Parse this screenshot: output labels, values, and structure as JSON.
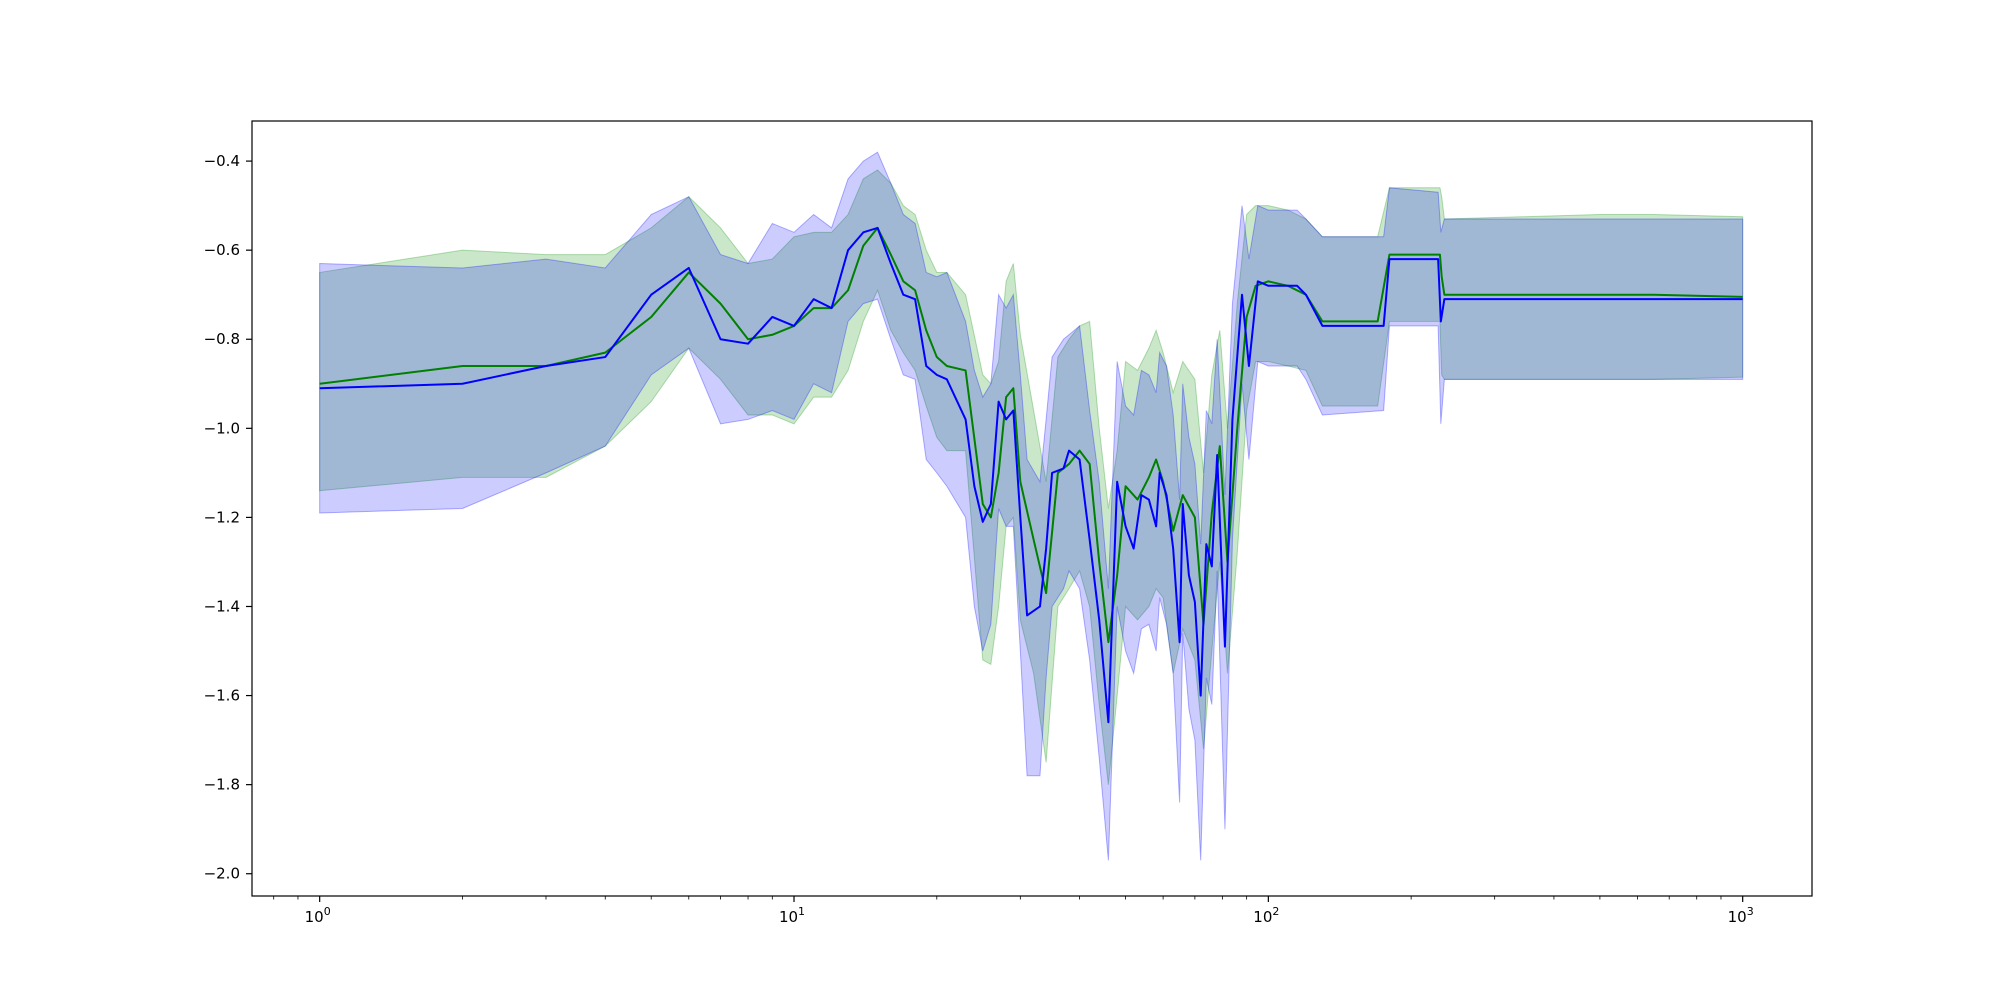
{
  "chart_data": {
    "type": "line",
    "title": "",
    "xlabel": "",
    "ylabel": "",
    "x_scale": "log",
    "xlim": [
      0.72,
      1400
    ],
    "ylim": [
      -2.05,
      -0.31
    ],
    "grid": false,
    "legend": "none",
    "x_ticks": [
      {
        "value": 1,
        "base": "10",
        "exp": "0"
      },
      {
        "value": 10,
        "base": "10",
        "exp": "1"
      },
      {
        "value": 100,
        "base": "10",
        "exp": "2"
      },
      {
        "value": 1000,
        "base": "10",
        "exp": "3"
      }
    ],
    "y_ticks": [
      {
        "value": -0.4,
        "label": "−0.4"
      },
      {
        "value": -0.6,
        "label": "−0.6"
      },
      {
        "value": -0.8,
        "label": "−0.8"
      },
      {
        "value": -1.0,
        "label": "−1.0"
      },
      {
        "value": -1.2,
        "label": "−1.2"
      },
      {
        "value": -1.4,
        "label": "−1.4"
      },
      {
        "value": -1.6,
        "label": "−1.6"
      },
      {
        "value": -1.8,
        "label": "−1.8"
      },
      {
        "value": -2.0,
        "label": "−2.0"
      }
    ],
    "series": [
      {
        "color": "#008000",
        "band_color": "#2ca02c",
        "band_opacity": 0.25,
        "points": [
          [
            1,
            -0.9,
            -0.65,
            -1.14
          ],
          [
            2,
            -0.86,
            -0.6,
            -1.11
          ],
          [
            3,
            -0.86,
            -0.61,
            -1.11
          ],
          [
            4,
            -0.83,
            -0.61,
            -1.04
          ],
          [
            5,
            -0.75,
            -0.55,
            -0.94
          ],
          [
            6,
            -0.65,
            -0.48,
            -0.82
          ],
          [
            7,
            -0.72,
            -0.55,
            -0.89
          ],
          [
            8,
            -0.8,
            -0.63,
            -0.97
          ],
          [
            9,
            -0.79,
            -0.62,
            -0.97
          ],
          [
            10,
            -0.77,
            -0.57,
            -0.99
          ],
          [
            11,
            -0.73,
            -0.56,
            -0.93
          ],
          [
            12,
            -0.73,
            -0.56,
            -0.93
          ],
          [
            13,
            -0.69,
            -0.52,
            -0.87
          ],
          [
            14,
            -0.59,
            -0.44,
            -0.76
          ],
          [
            15,
            -0.55,
            -0.42,
            -0.69
          ],
          [
            16,
            -0.61,
            -0.45,
            -0.78
          ],
          [
            17,
            -0.67,
            -0.5,
            -0.83
          ],
          [
            18,
            -0.69,
            -0.52,
            -0.87
          ],
          [
            19,
            -0.78,
            -0.6,
            -0.95
          ],
          [
            20,
            -0.84,
            -0.65,
            -1.02
          ],
          [
            21,
            -0.86,
            -0.65,
            -1.05
          ],
          [
            23,
            -0.87,
            -0.7,
            -1.05
          ],
          [
            25,
            -1.17,
            -0.88,
            -1.52
          ],
          [
            26,
            -1.2,
            -0.9,
            -1.53
          ],
          [
            27,
            -1.1,
            -0.85,
            -1.4
          ],
          [
            28,
            -0.93,
            -0.67,
            -1.22
          ],
          [
            29,
            -0.91,
            -0.63,
            -1.2
          ],
          [
            30,
            -1.12,
            -0.79,
            -1.43
          ],
          [
            32,
            -1.25,
            -0.96,
            -1.55
          ],
          [
            34,
            -1.37,
            -1.12,
            -1.75
          ],
          [
            36,
            -1.1,
            -0.84,
            -1.4
          ],
          [
            38,
            -1.08,
            -0.8,
            -1.36
          ],
          [
            40,
            -1.05,
            -0.77,
            -1.32
          ],
          [
            42,
            -1.08,
            -0.76,
            -1.4
          ],
          [
            44,
            -1.3,
            -1.0,
            -1.62
          ],
          [
            46,
            -1.48,
            -1.18,
            -1.8
          ],
          [
            48,
            -1.33,
            -1.05,
            -1.6
          ],
          [
            50,
            -1.13,
            -0.85,
            -1.4
          ],
          [
            53,
            -1.16,
            -0.87,
            -1.43
          ],
          [
            56,
            -1.11,
            -0.82,
            -1.4
          ],
          [
            58,
            -1.07,
            -0.78,
            -1.36
          ],
          [
            60,
            -1.12,
            -0.83,
            -1.38
          ],
          [
            63,
            -1.23,
            -0.92,
            -1.55
          ],
          [
            66,
            -1.15,
            -0.85,
            -1.45
          ],
          [
            70,
            -1.2,
            -0.89,
            -1.52
          ],
          [
            73,
            -1.44,
            -1.1,
            -1.72
          ],
          [
            76,
            -1.19,
            -0.88,
            -1.5
          ],
          [
            79,
            -1.04,
            -0.78,
            -1.3
          ],
          [
            82,
            -1.3,
            -1.0,
            -1.55
          ],
          [
            86,
            -1.0,
            -0.72,
            -1.28
          ],
          [
            90,
            -0.75,
            -0.52,
            -0.96
          ],
          [
            94,
            -0.68,
            -0.5,
            -0.85
          ],
          [
            100,
            -0.67,
            -0.5,
            -0.85
          ],
          [
            110,
            -0.68,
            -0.51,
            -0.86
          ],
          [
            120,
            -0.7,
            -0.53,
            -0.87
          ],
          [
            130,
            -0.76,
            -0.57,
            -0.95
          ],
          [
            170,
            -0.76,
            -0.57,
            -0.95
          ],
          [
            180,
            -0.61,
            -0.46,
            -0.76
          ],
          [
            230,
            -0.61,
            -0.46,
            -0.76
          ],
          [
            232,
            -0.66,
            -0.48,
            -0.88
          ],
          [
            235,
            -0.7,
            -0.53,
            -0.89
          ],
          [
            500,
            -0.7,
            -0.52,
            -0.89
          ],
          [
            650,
            -0.7,
            -0.52,
            -0.89
          ],
          [
            1000,
            -0.705,
            -0.525,
            -0.885
          ]
        ]
      },
      {
        "color": "#0000ff",
        "band_color": "#0000ff",
        "band_opacity": 0.2,
        "points": [
          [
            1,
            -0.91,
            -0.63,
            -1.19
          ],
          [
            2,
            -0.9,
            -0.64,
            -1.18
          ],
          [
            3,
            -0.86,
            -0.62,
            -1.1
          ],
          [
            4,
            -0.84,
            -0.64,
            -1.04
          ],
          [
            5,
            -0.7,
            -0.52,
            -0.88
          ],
          [
            6,
            -0.64,
            -0.48,
            -0.82
          ],
          [
            7,
            -0.8,
            -0.61,
            -0.99
          ],
          [
            8,
            -0.81,
            -0.63,
            -0.98
          ],
          [
            9,
            -0.75,
            -0.54,
            -0.96
          ],
          [
            10,
            -0.77,
            -0.56,
            -0.98
          ],
          [
            11,
            -0.71,
            -0.52,
            -0.9
          ],
          [
            12,
            -0.73,
            -0.55,
            -0.92
          ],
          [
            13,
            -0.6,
            -0.44,
            -0.76
          ],
          [
            14,
            -0.56,
            -0.4,
            -0.72
          ],
          [
            15,
            -0.55,
            -0.38,
            -0.71
          ],
          [
            16,
            -0.63,
            -0.45,
            -0.8
          ],
          [
            17,
            -0.7,
            -0.52,
            -0.88
          ],
          [
            18,
            -0.71,
            -0.54,
            -0.89
          ],
          [
            19,
            -0.86,
            -0.65,
            -1.07
          ],
          [
            20,
            -0.88,
            -0.66,
            -1.1
          ],
          [
            21,
            -0.89,
            -0.65,
            -1.13
          ],
          [
            23,
            -0.98,
            -0.76,
            -1.2
          ],
          [
            24,
            -1.13,
            -0.87,
            -1.4
          ],
          [
            25,
            -1.21,
            -0.93,
            -1.5
          ],
          [
            26,
            -1.17,
            -0.9,
            -1.44
          ],
          [
            27,
            -0.94,
            -0.7,
            -1.18
          ],
          [
            28,
            -0.98,
            -0.73,
            -1.22
          ],
          [
            29,
            -0.96,
            -0.7,
            -1.22
          ],
          [
            30,
            -1.2,
            -0.88,
            -1.5
          ],
          [
            31,
            -1.42,
            -1.07,
            -1.78
          ],
          [
            33,
            -1.4,
            -1.12,
            -1.78
          ],
          [
            34,
            -1.27,
            -0.98,
            -1.56
          ],
          [
            35,
            -1.1,
            -0.84,
            -1.4
          ],
          [
            37,
            -1.09,
            -0.8,
            -1.36
          ],
          [
            38,
            -1.05,
            -0.79,
            -1.32
          ],
          [
            40,
            -1.07,
            -0.77,
            -1.36
          ],
          [
            42,
            -1.25,
            -0.96,
            -1.52
          ],
          [
            44,
            -1.43,
            -1.12,
            -1.74
          ],
          [
            46,
            -1.66,
            -1.36,
            -1.97
          ],
          [
            48,
            -1.12,
            -0.85,
            -1.4
          ],
          [
            50,
            -1.22,
            -0.95,
            -1.5
          ],
          [
            52,
            -1.27,
            -0.97,
            -1.55
          ],
          [
            54,
            -1.15,
            -0.87,
            -1.45
          ],
          [
            56,
            -1.16,
            -0.88,
            -1.44
          ],
          [
            58,
            -1.22,
            -0.92,
            -1.5
          ],
          [
            59,
            -1.1,
            -0.83,
            -1.38
          ],
          [
            61,
            -1.15,
            -0.86,
            -1.44
          ],
          [
            63,
            -1.27,
            -0.97,
            -1.55
          ],
          [
            65,
            -1.48,
            -1.16,
            -1.84
          ],
          [
            66,
            -1.17,
            -0.9,
            -1.46
          ],
          [
            68,
            -1.33,
            -1.02,
            -1.63
          ],
          [
            70,
            -1.39,
            -1.08,
            -1.7
          ],
          [
            72,
            -1.6,
            -1.26,
            -1.97
          ],
          [
            74,
            -1.26,
            -0.96,
            -1.56
          ],
          [
            76,
            -1.31,
            -0.99,
            -1.62
          ],
          [
            78,
            -1.06,
            -0.8,
            -1.32
          ],
          [
            81,
            -1.49,
            -1.15,
            -1.9
          ],
          [
            84,
            -0.98,
            -0.72,
            -1.25
          ],
          [
            88,
            -0.7,
            -0.5,
            -0.9
          ],
          [
            91,
            -0.86,
            -0.62,
            -1.07
          ],
          [
            95,
            -0.67,
            -0.5,
            -0.85
          ],
          [
            100,
            -0.68,
            -0.51,
            -0.86
          ],
          [
            115,
            -0.68,
            -0.51,
            -0.86
          ],
          [
            120,
            -0.7,
            -0.53,
            -0.89
          ],
          [
            130,
            -0.77,
            -0.57,
            -0.97
          ],
          [
            175,
            -0.77,
            -0.57,
            -0.96
          ],
          [
            180,
            -0.62,
            -0.46,
            -0.77
          ],
          [
            228,
            -0.62,
            -0.47,
            -0.77
          ],
          [
            231,
            -0.76,
            -0.56,
            -0.99
          ],
          [
            235,
            -0.71,
            -0.53,
            -0.89
          ],
          [
            500,
            -0.71,
            -0.53,
            -0.89
          ],
          [
            1000,
            -0.71,
            -0.53,
            -0.89
          ]
        ]
      }
    ]
  }
}
